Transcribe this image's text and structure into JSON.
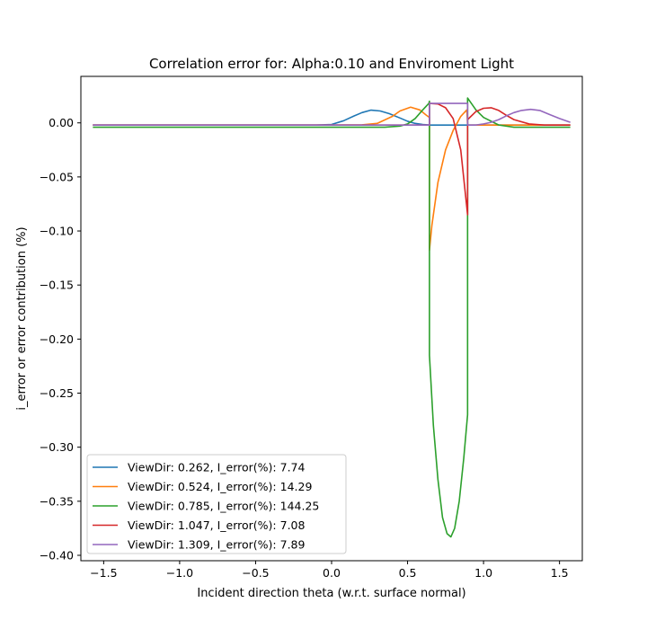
{
  "chart_data": {
    "type": "line",
    "title": "Correlation error for: Alpha:0.10 and Enviroment Light",
    "xlabel": "Incident direction theta (w.r.t. surface normal)",
    "ylabel": "i_error or error contribution (%)",
    "xlim": [
      -1.65,
      1.65
    ],
    "ylim": [
      -0.405,
      0.043
    ],
    "xticks": [
      -1.5,
      -1.0,
      -0.5,
      0.0,
      0.5,
      1.0,
      1.5
    ],
    "xtick_labels": [
      "−1.5",
      "−1.0",
      "−0.5",
      "0.0",
      "0.5",
      "1.0",
      "1.5"
    ],
    "yticks": [
      0.0,
      -0.05,
      -0.1,
      -0.15,
      -0.2,
      -0.25,
      -0.3,
      -0.35,
      -0.4
    ],
    "ytick_labels": [
      "0.00",
      "−0.05",
      "−0.10",
      "−0.15",
      "−0.20",
      "−0.25",
      "−0.30",
      "−0.35",
      "−0.40"
    ],
    "legend_position": "lower-left",
    "grid": false,
    "series": [
      {
        "name": "ViewDir: 0.262, I_error(%): 7.74",
        "color": "#1f77b4",
        "x": [
          -1.571,
          -1.2,
          -0.8,
          -0.4,
          -0.1,
          0.0,
          0.08,
          0.15,
          0.2,
          0.26,
          0.32,
          0.38,
          0.45,
          0.5,
          0.55,
          0.6,
          0.65,
          0.7,
          1.0,
          1.3,
          1.571
        ],
        "y": [
          -0.002,
          -0.002,
          -0.002,
          -0.002,
          -0.002,
          -0.0015,
          0.002,
          0.0065,
          0.0095,
          0.0118,
          0.011,
          0.0085,
          0.0045,
          0.0015,
          -0.0005,
          -0.0015,
          -0.002,
          -0.002,
          -0.002,
          -0.002,
          -0.002
        ]
      },
      {
        "name": "ViewDir: 0.524, I_error(%): 14.29",
        "color": "#ff7f0e",
        "x": [
          -1.571,
          -1.0,
          -0.5,
          0.0,
          0.2,
          0.3,
          0.4,
          0.45,
          0.52,
          0.58,
          0.62,
          0.644,
          0.644,
          0.66,
          0.7,
          0.75,
          0.8,
          0.85,
          0.89,
          0.895,
          0.92,
          1.0,
          1.3,
          1.571
        ],
        "y": [
          -0.002,
          -0.002,
          -0.002,
          -0.002,
          -0.0018,
          -0.0005,
          0.006,
          0.011,
          0.0145,
          0.012,
          0.0075,
          0.005,
          -0.118,
          -0.095,
          -0.055,
          -0.025,
          -0.007,
          0.006,
          0.012,
          -0.002,
          -0.002,
          -0.002,
          -0.002,
          -0.002
        ]
      },
      {
        "name": "ViewDir: 0.785, I_error(%): 144.25",
        "color": "#2ca02c",
        "x": [
          -1.571,
          -1.0,
          -0.5,
          0.0,
          0.2,
          0.35,
          0.45,
          0.5,
          0.55,
          0.6,
          0.64,
          0.644,
          0.644,
          0.67,
          0.7,
          0.73,
          0.76,
          0.785,
          0.81,
          0.84,
          0.87,
          0.895,
          0.895,
          0.91,
          0.95,
          1.0,
          1.1,
          1.2,
          1.4,
          1.571
        ],
        "y": [
          -0.004,
          -0.004,
          -0.004,
          -0.004,
          -0.004,
          -0.004,
          -0.003,
          -0.001,
          0.004,
          0.012,
          0.018,
          0.02,
          -0.215,
          -0.28,
          -0.33,
          -0.365,
          -0.38,
          -0.383,
          -0.375,
          -0.35,
          -0.31,
          -0.27,
          0.023,
          0.02,
          0.012,
          0.005,
          -0.002,
          -0.004,
          -0.004,
          -0.004
        ]
      },
      {
        "name": "ViewDir: 1.047, I_error(%): 7.08",
        "color": "#d62728",
        "x": [
          -1.571,
          -1.0,
          -0.5,
          0.0,
          0.5,
          0.644,
          0.644,
          0.7,
          0.75,
          0.8,
          0.85,
          0.895,
          0.895,
          0.95,
          1.0,
          1.05,
          1.1,
          1.15,
          1.2,
          1.3,
          1.4,
          1.571
        ],
        "y": [
          -0.002,
          -0.002,
          -0.002,
          -0.002,
          -0.002,
          -0.002,
          0.018,
          0.0175,
          0.014,
          0.004,
          -0.025,
          -0.085,
          0.003,
          0.0105,
          0.0135,
          0.014,
          0.0115,
          0.007,
          0.003,
          -0.001,
          -0.002,
          -0.002
        ]
      },
      {
        "name": "ViewDir: 1.309, I_error(%): 7.89",
        "color": "#9467bd",
        "x": [
          -1.571,
          -1.0,
          -0.5,
          0.0,
          0.5,
          0.644,
          0.644,
          0.7,
          0.78,
          0.85,
          0.895,
          0.895,
          0.95,
          1.0,
          1.05,
          1.1,
          1.15,
          1.2,
          1.25,
          1.31,
          1.37,
          1.43,
          1.5,
          1.571
        ],
        "y": [
          -0.002,
          -0.002,
          -0.002,
          -0.002,
          -0.002,
          -0.002,
          0.018,
          0.018,
          0.018,
          0.018,
          0.018,
          -0.002,
          -0.002,
          -0.001,
          0.0005,
          0.003,
          0.0065,
          0.0095,
          0.0115,
          0.0125,
          0.0115,
          0.008,
          0.004,
          0.0005
        ]
      }
    ]
  }
}
